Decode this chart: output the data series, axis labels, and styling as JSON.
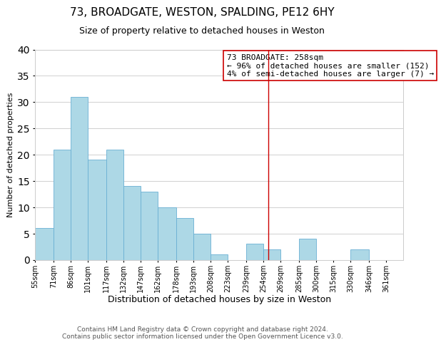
{
  "title": "73, BROADGATE, WESTON, SPALDING, PE12 6HY",
  "subtitle": "Size of property relative to detached houses in Weston",
  "xlabel": "Distribution of detached houses by size in Weston",
  "ylabel": "Number of detached properties",
  "bar_left_edges": [
    55,
    71,
    86,
    101,
    117,
    132,
    147,
    162,
    178,
    193,
    208,
    223,
    239,
    254,
    269,
    285,
    300,
    315,
    330,
    346
  ],
  "bar_heights": [
    6,
    21,
    31,
    19,
    21,
    14,
    13,
    10,
    8,
    5,
    1,
    0,
    3,
    2,
    0,
    4,
    0,
    0,
    2,
    0
  ],
  "bar_widths": [
    16,
    15,
    15,
    16,
    15,
    15,
    15,
    16,
    15,
    15,
    15,
    16,
    15,
    15,
    16,
    15,
    15,
    15,
    16,
    15
  ],
  "bar_color": "#add8e6",
  "bar_edgecolor": "#6ab0d4",
  "tick_labels": [
    "55sqm",
    "71sqm",
    "86sqm",
    "101sqm",
    "117sqm",
    "132sqm",
    "147sqm",
    "162sqm",
    "178sqm",
    "193sqm",
    "208sqm",
    "223sqm",
    "239sqm",
    "254sqm",
    "269sqm",
    "285sqm",
    "300sqm",
    "315sqm",
    "330sqm",
    "346sqm",
    "361sqm"
  ],
  "tick_positions": [
    55,
    71,
    86,
    101,
    117,
    132,
    147,
    162,
    178,
    193,
    208,
    223,
    239,
    254,
    269,
    285,
    300,
    315,
    330,
    346,
    361
  ],
  "xlim_min": 55,
  "xlim_max": 376,
  "ylim": [
    0,
    40
  ],
  "vline_x": 258,
  "vline_color": "#cc0000",
  "annotation_title": "73 BROADGATE: 258sqm",
  "annotation_line1": "← 96% of detached houses are smaller (152)",
  "annotation_line2": "4% of semi-detached houses are larger (7) →",
  "annotation_box_color": "#ffffff",
  "annotation_box_edgecolor": "#cc0000",
  "footer_line1": "Contains HM Land Registry data © Crown copyright and database right 2024.",
  "footer_line2": "Contains public sector information licensed under the Open Government Licence v3.0.",
  "background_color": "#ffffff",
  "grid_color": "#d0d0d0",
  "title_fontsize": 11,
  "subtitle_fontsize": 9,
  "xlabel_fontsize": 9,
  "ylabel_fontsize": 8,
  "tick_fontsize": 7,
  "annotation_fontsize": 8,
  "footer_fontsize": 6.5
}
